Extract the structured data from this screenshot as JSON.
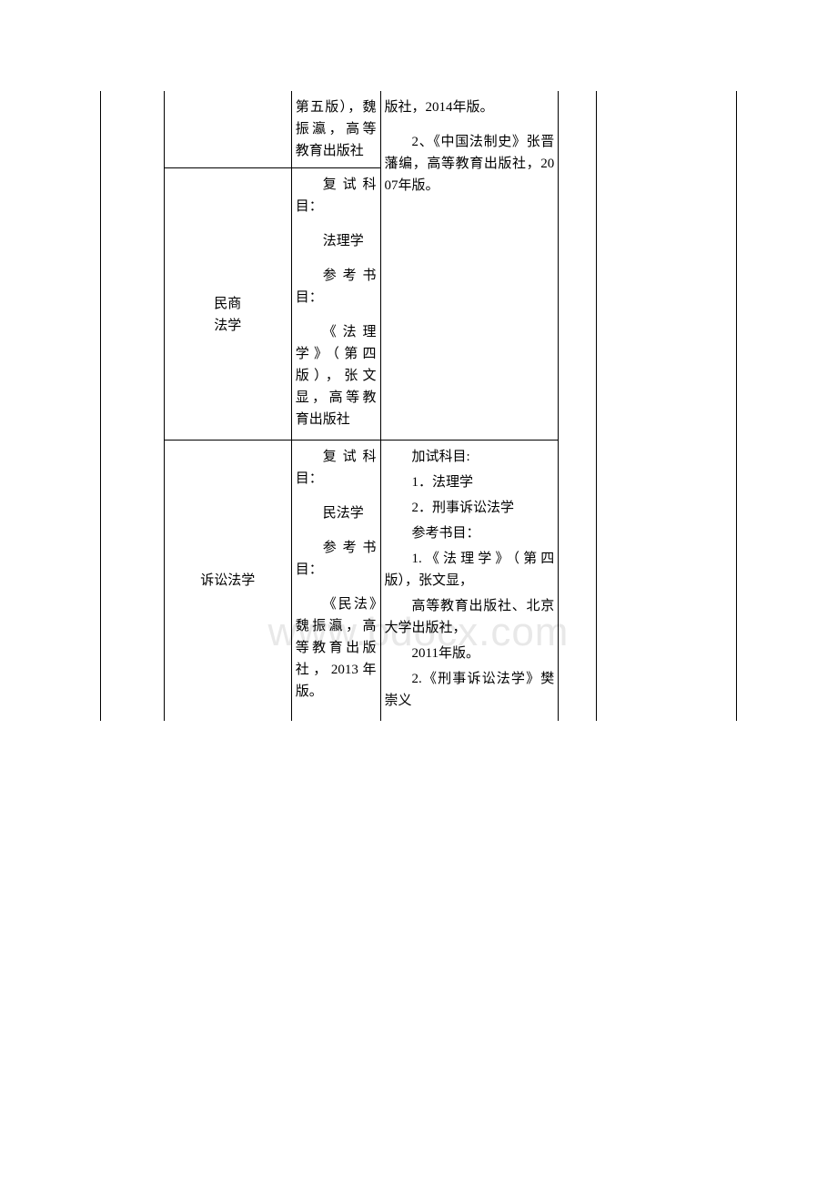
{
  "watermark": "www.bdocx.com",
  "table": {
    "border_color": "#000000",
    "background_color": "#ffffff",
    "text_color": "#000000",
    "font_size": 15,
    "rows": [
      {
        "col3_a": "第五版），魏振瀛，高等教育出版社",
        "col4_a1": "版社，2014年版。",
        "col4_a2": "2、《中国法制史》张晋藩编，高等教育出版社，2007年版。"
      },
      {
        "col2_b": "民商\n法学",
        "col3_b1": "复试科目：",
        "col3_b2": "法理学",
        "col3_b3": "参考书目：",
        "col3_b4": "《法理学》（第四版），张文显，高等教育出版社"
      },
      {
        "col2_c": "诉讼法学",
        "col3_c1": "复试科目：",
        "col3_c2": "民法学",
        "col3_c3": "参考书目：",
        "col3_c4": "《民法》魏振瀛，高等教育出版社，2013年版。",
        "col4_c1": "加试科目:",
        "col4_c2": "1．法理学",
        "col4_c3": "2．刑事诉讼法学",
        "col4_c4": "参考书目：",
        "col4_c5": "1.《法理学》（第四版），张文显，",
        "col4_c6": "高等教育出版社、北京大学出版社，",
        "col4_c7": "2011年版。",
        "col4_c8": "2.《刑事诉讼法学》樊崇义"
      }
    ]
  }
}
